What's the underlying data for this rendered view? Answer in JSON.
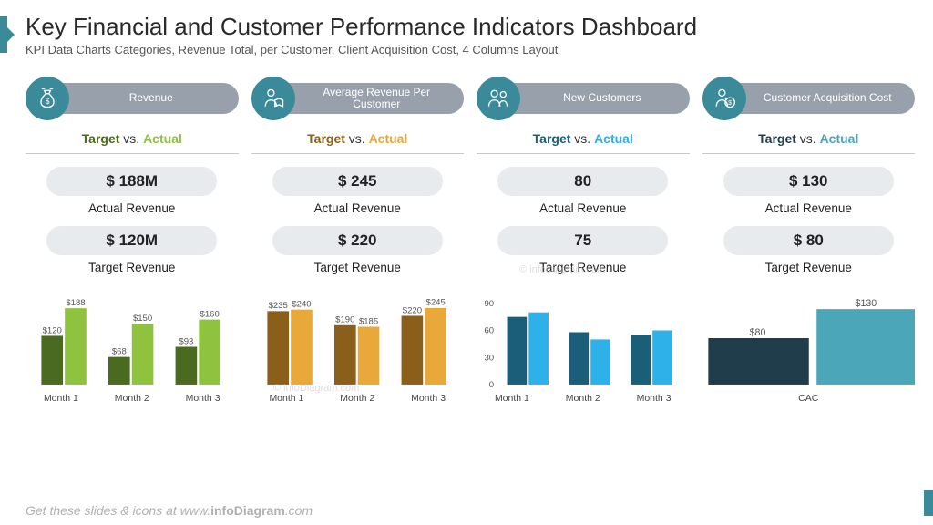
{
  "header": {
    "title": "Key Financial and Customer Performance Indicators Dashboard",
    "subtitle": "KPI Data Charts Categories, Revenue Total, per Customer, Client Acquisition Cost, 4 Columns Layout"
  },
  "footer_text_prefix": "Get these slides & icons at www.",
  "footer_text_bold": "infoDiagram",
  "footer_text_suffix": ".com",
  "watermark": "© infoDiagram.com",
  "colors": {
    "accent": "#3a8a99",
    "pill_gray": "#98a1ab",
    "stat_pill_bg": "#e8ebee",
    "hr": "#c9c9c9"
  },
  "columns": [
    {
      "id": "revenue",
      "icon": "money-bag",
      "label": "Revenue",
      "target_color": "#4a6b1f",
      "actual_color": "#8fc33f",
      "tva_target": "Target",
      "tva_vs": " vs. ",
      "tva_actual": "Actual",
      "actual_value": "$ 188M",
      "actual_label": "Actual Revenue",
      "target_value": "$ 120M",
      "target_label": "Target Revenue",
      "chart": {
        "type": "grouped-bar",
        "show_value_labels": true,
        "value_prefix": "$",
        "categories": [
          "Month 1",
          "Month 2",
          "Month 3"
        ],
        "ylim": [
          0,
          200
        ],
        "series": [
          {
            "name": "target",
            "color": "#4a6b1f",
            "values": [
              120,
              68,
              93
            ]
          },
          {
            "name": "actual",
            "color": "#8fc33f",
            "values": [
              188,
              150,
              160
            ]
          }
        ],
        "bar_width": 0.35,
        "label_fontsize": 9,
        "label_color": "#555"
      }
    },
    {
      "id": "arpc",
      "icon": "person-book",
      "label": "Average Revenue Per Customer",
      "target_color": "#8b5e1a",
      "actual_color": "#e8a83a",
      "tva_target": "Target",
      "tva_vs": " vs. ",
      "tva_actual": "Actual",
      "actual_value": "$ 245",
      "actual_label": "Actual Revenue",
      "target_value": "$ 220",
      "target_label": "Target Revenue",
      "chart": {
        "type": "grouped-bar",
        "show_value_labels": true,
        "value_prefix": "$",
        "categories": [
          "Month 1",
          "Month 2",
          "Month 3"
        ],
        "ylim": [
          0,
          260
        ],
        "series": [
          {
            "name": "target",
            "color": "#8b5e1a",
            "values": [
              235,
              190,
              220
            ]
          },
          {
            "name": "actual",
            "color": "#e8a83a",
            "values": [
              240,
              185,
              245
            ]
          }
        ],
        "bar_width": 0.35,
        "label_fontsize": 9,
        "label_color": "#555"
      }
    },
    {
      "id": "newcust",
      "icon": "people",
      "label": "New Customers",
      "target_color": "#1a5e7a",
      "actual_color": "#2eb0e8",
      "tva_target": "Target",
      "tva_vs": " vs. ",
      "tva_actual": "Actual",
      "actual_value": "80",
      "actual_label": "Actual Revenue",
      "target_value": "75",
      "target_label": "Target Revenue",
      "chart": {
        "type": "grouped-bar",
        "show_value_labels": false,
        "show_y_axis": true,
        "categories": [
          "Month 1",
          "Month 2",
          "Month 3"
        ],
        "ylim": [
          0,
          90
        ],
        "ytick_step": 30,
        "series": [
          {
            "name": "target",
            "color": "#1a5e7a",
            "values": [
              75,
              58,
              55
            ]
          },
          {
            "name": "actual",
            "color": "#2eb0e8",
            "values": [
              80,
              50,
              60
            ]
          }
        ],
        "bar_width": 0.35,
        "label_fontsize": 9,
        "label_color": "#555"
      }
    },
    {
      "id": "cac",
      "icon": "person-dollar",
      "label": "Customer Acquisition Cost",
      "target_color": "#1f3d4a",
      "actual_color": "#4aa6b8",
      "tva_target": "Target",
      "tva_vs": " vs. ",
      "tva_actual": "Actual",
      "actual_value": "$ 130",
      "actual_label": "Actual Revenue",
      "target_value": "$ 80",
      "target_label": "Target Revenue",
      "chart": {
        "type": "grouped-bar",
        "show_value_labels": true,
        "value_prefix": "$",
        "categories": [
          "CAC"
        ],
        "ylim": [
          0,
          140
        ],
        "series": [
          {
            "name": "target",
            "color": "#1f3d4a",
            "values": [
              80
            ]
          },
          {
            "name": "actual",
            "color": "#4aa6b8",
            "values": [
              130
            ]
          }
        ],
        "bar_width": 0.5,
        "label_fontsize": 10,
        "label_color": "#555"
      }
    }
  ]
}
